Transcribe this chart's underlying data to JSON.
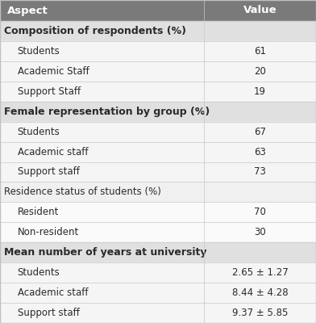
{
  "header": [
    "Aspect",
    "Value"
  ],
  "header_bg": "#7a7a7a",
  "header_fg": "#ffffff",
  "rows": [
    {
      "label": "Composition of respondents (%)",
      "value": "",
      "indent": false,
      "bold": true,
      "bg": "#e0e0e0",
      "value_bg": "#e0e0e0"
    },
    {
      "label": "Students",
      "value": "61",
      "indent": true,
      "bold": false,
      "bg": "#f5f5f5",
      "value_bg": "#f5f5f5"
    },
    {
      "label": "Academic Staff",
      "value": "20",
      "indent": true,
      "bold": false,
      "bg": "#f5f5f5",
      "value_bg": "#f5f5f5"
    },
    {
      "label": "Support Staff",
      "value": "19",
      "indent": true,
      "bold": false,
      "bg": "#f5f5f5",
      "value_bg": "#f5f5f5"
    },
    {
      "label": "Female representation by group (%)",
      "value": "",
      "indent": false,
      "bold": true,
      "bg": "#e0e0e0",
      "value_bg": "#e0e0e0"
    },
    {
      "label": "Students",
      "value": "67",
      "indent": true,
      "bold": false,
      "bg": "#f5f5f5",
      "value_bg": "#f5f5f5"
    },
    {
      "label": "Academic staff",
      "value": "63",
      "indent": true,
      "bold": false,
      "bg": "#f5f5f5",
      "value_bg": "#f5f5f5"
    },
    {
      "label": "Support staff",
      "value": "73",
      "indent": true,
      "bold": false,
      "bg": "#f5f5f5",
      "value_bg": "#f5f5f5"
    },
    {
      "label": "Residence status of students (%)",
      "value": "",
      "indent": false,
      "bold": false,
      "bg": "#f0f0f0",
      "value_bg": "#f0f0f0"
    },
    {
      "label": "Resident",
      "value": "70",
      "indent": true,
      "bold": false,
      "bg": "#fafafa",
      "value_bg": "#fafafa"
    },
    {
      "label": "Non-resident",
      "value": "30",
      "indent": true,
      "bold": false,
      "bg": "#fafafa",
      "value_bg": "#fafafa"
    },
    {
      "label": "Mean number of years at university",
      "value": "",
      "indent": false,
      "bold": true,
      "bg": "#e0e0e0",
      "value_bg": "#e0e0e0"
    },
    {
      "label": "Students",
      "value": "2.65 ± 1.27",
      "indent": true,
      "bold": false,
      "bg": "#f5f5f5",
      "value_bg": "#f5f5f5"
    },
    {
      "label": "Academic staff",
      "value": "8.44 ± 4.28",
      "indent": true,
      "bold": false,
      "bg": "#f5f5f5",
      "value_bg": "#f5f5f5"
    },
    {
      "label": "Support staff",
      "value": "9.37 ± 5.85",
      "indent": true,
      "bold": false,
      "bg": "#f5f5f5",
      "value_bg": "#f5f5f5"
    }
  ],
  "col_split": 0.645,
  "header_fontsize": 9.5,
  "row_fontsize": 8.5,
  "section_fontsize": 9.0,
  "figwidth": 3.92,
  "figheight": 4.0,
  "dpi": 100
}
